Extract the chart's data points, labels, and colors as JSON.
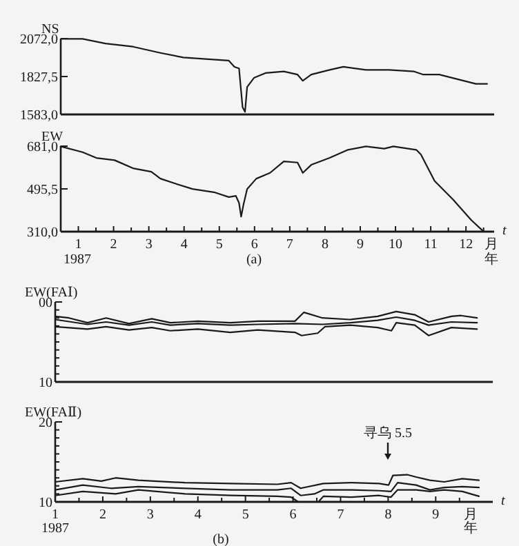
{
  "chart_data": [
    {
      "type": "line",
      "ylabel": "NS",
      "xlim": [
        0,
        12.3
      ],
      "ylim": [
        1583.0,
        2072.0
      ],
      "yticks": [
        {
          "value": 2072.0,
          "label": "2072,0"
        },
        {
          "value": 1827.5,
          "label": "1827,5"
        },
        {
          "value": 1583.0,
          "label": "1583,0"
        }
      ],
      "tick_labels": "y",
      "series": [
        {
          "color": "#1a1a1a",
          "x": [
            0.01,
            0.62,
            1.27,
            2.05,
            2.83,
            3.48,
            4.12,
            4.77,
            4.93,
            5.06,
            5.16,
            5.23,
            5.29,
            5.49,
            5.81,
            6.33,
            6.72,
            6.87,
            7.11,
            7.63,
            8.02,
            8.66,
            9.31,
            10.03,
            10.29,
            10.74,
            11.26,
            11.78,
            12.1
          ],
          "values": [
            2070,
            2070,
            2040,
            2020,
            1980,
            1950,
            1940,
            1930,
            1890,
            1880,
            1630,
            1600,
            1760,
            1820,
            1850,
            1860,
            1840,
            1800,
            1840,
            1870,
            1890,
            1870,
            1870,
            1860,
            1840,
            1840,
            1810,
            1780,
            1780
          ]
        }
      ]
    },
    {
      "type": "line",
      "ylabel": "EW",
      "xlabel": "t",
      "xlim": [
        0,
        12.3
      ],
      "ylim": [
        310.0,
        681.0
      ],
      "yticks": [
        {
          "value": 681.0,
          "label": "681,0"
        },
        {
          "value": 495.5,
          "label": "495,5"
        },
        {
          "value": 310.0,
          "label": "310,0"
        }
      ],
      "xticks": [
        {
          "value": 0.5,
          "label": "1"
        },
        {
          "value": 1,
          "label": null
        },
        {
          "value": 1.5,
          "label": "2"
        },
        {
          "value": 2,
          "label": null
        },
        {
          "value": 2.5,
          "label": "3"
        },
        {
          "value": 3,
          "label": null
        },
        {
          "value": 3.5,
          "label": "4"
        },
        {
          "value": 4,
          "label": null
        },
        {
          "value": 4.5,
          "label": "5"
        },
        {
          "value": 5,
          "label": null
        },
        {
          "value": 5.5,
          "label": "6"
        },
        {
          "value": 6,
          "label": null
        },
        {
          "value": 6.5,
          "label": "7"
        },
        {
          "value": 7,
          "label": null
        },
        {
          "value": 7.5,
          "label": "8"
        },
        {
          "value": 8,
          "label": null
        },
        {
          "value": 8.5,
          "label": "9"
        },
        {
          "value": 9,
          "label": null
        },
        {
          "value": 9.5,
          "label": "10"
        },
        {
          "value": 10,
          "label": null
        },
        {
          "value": 10.5,
          "label": "11"
        },
        {
          "value": 11,
          "label": null
        },
        {
          "value": 11.5,
          "label": "12"
        },
        {
          "value": 12,
          "label": null
        }
      ],
      "series": [
        {
          "color": "#1a1a1a",
          "x": [
            0,
            0.62,
            1.01,
            1.53,
            2.05,
            2.57,
            2.83,
            3.22,
            3.74,
            4.38,
            4.77,
            4.97,
            5.06,
            5.12,
            5.19,
            5.29,
            5.55,
            5.94,
            6.33,
            6.72,
            6.87,
            7.11,
            7.63,
            8.15,
            8.66,
            9.18,
            9.44,
            10.09,
            10.22,
            10.61,
            11.13,
            11.65,
            11.97
          ],
          "values": [
            680,
            655,
            630,
            620,
            585,
            570,
            540,
            520,
            495,
            480,
            460,
            465,
            435,
            375,
            430,
            495,
            540,
            565,
            615,
            610,
            565,
            600,
            630,
            665,
            680,
            670,
            680,
            665,
            645,
            530,
            450,
            360,
            315
          ]
        }
      ],
      "annotations": [
        "1987",
        "月",
        "年",
        "(a)"
      ]
    },
    {
      "type": "line",
      "ylabel": "EW(FAⅠ)",
      "xlim": [
        1,
        10.2
      ],
      "ylim": [
        10,
        0
      ],
      "yticks": [
        {
          "value": 0,
          "label": "00"
        },
        {
          "value": 1,
          "label": null
        },
        {
          "value": 2,
          "label": null
        },
        {
          "value": 3,
          "label": null
        },
        {
          "value": 4,
          "label": null
        },
        {
          "value": 5,
          "label": null
        },
        {
          "value": 6,
          "label": null
        },
        {
          "value": 7,
          "label": null
        },
        {
          "value": 8,
          "label": null
        },
        {
          "value": 9,
          "label": null
        },
        {
          "value": 10,
          "label": "10"
        }
      ],
      "tick_labels": "y",
      "series": [
        {
          "color": "#1a1a1a",
          "x": [
            1.0,
            1.29,
            1.68,
            2.07,
            2.55,
            3.03,
            3.42,
            4.0,
            4.68,
            5.26,
            6.04,
            6.23,
            6.62,
            7.2,
            7.78,
            8.17,
            8.56,
            8.85,
            9.33,
            9.53,
            9.87
          ],
          "values": [
            1.8,
            2.0,
            2.6,
            2.0,
            2.7,
            2.1,
            2.6,
            2.4,
            2.6,
            2.4,
            2.4,
            1.3,
            2.0,
            2.2,
            1.8,
            1.2,
            1.6,
            2.5,
            1.8,
            1.7,
            2.0
          ]
        },
        {
          "color": "#1a1a1a",
          "x": [
            1.0,
            1.68,
            2.07,
            2.55,
            3.03,
            3.42,
            4.0,
            4.68,
            5.26,
            6.04,
            6.62,
            7.2,
            7.78,
            8.17,
            8.56,
            8.85,
            9.33,
            9.87
          ],
          "values": [
            2.2,
            2.8,
            2.5,
            2.9,
            2.5,
            2.9,
            2.7,
            2.9,
            2.8,
            2.7,
            2.8,
            2.6,
            2.3,
            1.9,
            2.3,
            2.9,
            2.5,
            2.6
          ]
        },
        {
          "color": "#1a1a1a",
          "x": [
            1.0,
            1.68,
            2.07,
            2.55,
            3.03,
            3.42,
            4.0,
            4.68,
            5.26,
            6.04,
            6.18,
            6.52,
            6.67,
            7.2,
            7.78,
            8.07,
            8.17,
            8.56,
            8.85,
            9.33,
            9.87
          ],
          "values": [
            3.1,
            3.4,
            3.1,
            3.5,
            3.2,
            3.6,
            3.4,
            3.8,
            3.5,
            3.8,
            4.2,
            3.9,
            3.1,
            2.9,
            3.2,
            3.6,
            2.6,
            2.9,
            4.2,
            3.2,
            3.4
          ]
        }
      ]
    },
    {
      "type": "line",
      "ylabel": "EW(FAⅡ)",
      "xlabel": "t",
      "xlim": [
        1,
        10.2
      ],
      "ylim": [
        10,
        20
      ],
      "yticks": [
        {
          "value": 20,
          "label": "20"
        },
        {
          "value": 19,
          "label": null
        },
        {
          "value": 18,
          "label": null
        },
        {
          "value": 17,
          "label": null
        },
        {
          "value": 16,
          "label": null
        },
        {
          "value": 15,
          "label": null
        },
        {
          "value": 14,
          "label": null
        },
        {
          "value": 13,
          "label": null
        },
        {
          "value": 12,
          "label": null
        },
        {
          "value": 11,
          "label": null
        },
        {
          "value": 10,
          "label": "10"
        }
      ],
      "xticks": [
        1,
        {
          "value": 1.5,
          "label": null
        },
        2,
        {
          "value": 2.5,
          "label": null
        },
        3,
        {
          "value": 3.5,
          "label": null
        },
        4,
        {
          "value": 4.5,
          "label": null
        },
        5,
        {
          "value": 5.5,
          "label": null
        },
        6,
        {
          "value": 6.5,
          "label": null
        },
        7,
        {
          "value": 7.5,
          "label": null
        },
        8,
        {
          "value": 8.5,
          "label": null
        },
        9,
        {
          "value": 9.5,
          "label": null
        }
      ],
      "series": [
        {
          "color": "#1a1a1a",
          "x": [
            1,
            1.58,
            1.97,
            2.27,
            2.75,
            3.73,
            4.7,
            5.67,
            5.96,
            6.16,
            6.64,
            7.23,
            7.81,
            8.01,
            8.1,
            8.4,
            8.59,
            8.88,
            9.18,
            9.56,
            9.91
          ],
          "values": [
            12.5,
            12.9,
            12.6,
            13.0,
            12.7,
            12.4,
            12.3,
            12.2,
            12.4,
            11.7,
            12.3,
            12.4,
            12.3,
            12.1,
            13.3,
            13.4,
            13.1,
            12.7,
            12.5,
            12.9,
            12.7
          ]
        },
        {
          "color": "#1a1a1a",
          "x": [
            1,
            1.58,
            2.17,
            2.75,
            3.73,
            4.7,
            5.67,
            5.96,
            6.16,
            6.45,
            6.64,
            7.23,
            7.81,
            8.06,
            8.2,
            8.59,
            8.88,
            9.18,
            9.56,
            9.91
          ],
          "values": [
            11.5,
            12.1,
            11.7,
            11.9,
            11.7,
            11.5,
            11.5,
            11.7,
            10.8,
            11.0,
            11.5,
            11.5,
            11.4,
            11.3,
            12.4,
            12.1,
            11.5,
            11.8,
            11.9,
            11.8
          ]
        },
        {
          "color": "#1a1a1a",
          "x": [
            1,
            1.58,
            2.27,
            2.75,
            3.73,
            4.7,
            5.67,
            5.96,
            6.11
          ],
          "values": [
            10.8,
            11.3,
            11.0,
            11.5,
            11.0,
            10.8,
            10.7,
            10.6,
            10.0
          ]
        },
        {
          "color": "#1a1a1a",
          "x": [
            6.55,
            6.64,
            7.23,
            7.81,
            8.06,
            8.2,
            8.59,
            8.88,
            9.18,
            9.56,
            9.91
          ],
          "values": [
            10.1,
            10.7,
            10.6,
            10.8,
            10.6,
            11.5,
            11.5,
            11.3,
            11.5,
            11.3,
            10.7
          ]
        }
      ],
      "annotations": [
        "寻乌 5.5",
        "1987",
        "月",
        "年",
        "(b)"
      ]
    }
  ]
}
